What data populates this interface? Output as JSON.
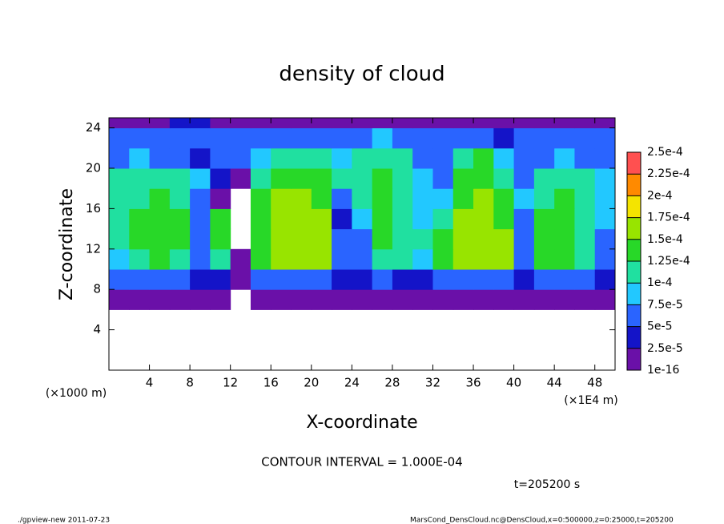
{
  "chart_data": {
    "type": "heatmap",
    "title": "density of cloud",
    "x_label": "X-coordinate",
    "y_label": "Z-coordinate",
    "x_unit": "(×1E4 m)",
    "y_unit": "(×1000 m)",
    "annotation": "CONTOUR INTERVAL = 1.000E-04",
    "time_label": "t=205200 s",
    "footer_left": "./gpview-new  2011-07-23",
    "footer_right": "MarsCond_DensCloud.nc@DensCloud,x=0:500000,z=0:25000,t=205200",
    "xlim": [
      0,
      50
    ],
    "ylim": [
      0,
      25
    ],
    "xticks": [
      4,
      8,
      12,
      16,
      20,
      24,
      28,
      32,
      36,
      40,
      44,
      48
    ],
    "yticks": [
      4,
      8,
      12,
      16,
      20,
      24
    ],
    "x_bins": [
      0,
      2,
      4,
      6,
      8,
      10,
      12,
      14,
      16,
      18,
      20,
      22,
      24,
      26,
      28,
      30,
      32,
      34,
      36,
      38,
      40,
      42,
      44,
      46,
      48,
      50
    ],
    "y_bins": [
      6,
      8,
      10,
      12,
      14,
      16,
      18,
      20,
      22,
      24,
      25
    ],
    "values": [
      [
        1e-05,
        1e-05,
        1e-05,
        1e-05,
        1e-05,
        1e-05,
        null,
        1e-05,
        1e-05,
        1e-05,
        2e-05,
        1e-05,
        1e-05,
        1e-05,
        1e-05,
        1e-05,
        1e-05,
        1e-05,
        2e-05,
        2e-05,
        1e-05,
        1e-05,
        1e-05,
        1e-05,
        1e-05
      ],
      [
        5e-05,
        6e-05,
        5e-05,
        5e-05,
        4e-05,
        3e-05,
        1e-05,
        5e-05,
        6e-05,
        6e-05,
        6e-05,
        3e-05,
        4e-05,
        5e-05,
        4e-05,
        4e-05,
        6e-05,
        6e-05,
        6e-05,
        5e-05,
        4e-05,
        5e-05,
        6e-05,
        5e-05,
        3e-05
      ],
      [
        9e-05,
        0.00012,
        0.00013,
        0.00012,
        5e-05,
        0.00012,
        1e-05,
        0.00013,
        0.00015,
        0.00016,
        0.00015,
        6e-05,
        6e-05,
        0.00012,
        0.0001,
        8e-05,
        0.00014,
        0.00015,
        0.00016,
        0.00015,
        5e-05,
        0.00013,
        0.00013,
        0.0001,
        6e-05
      ],
      [
        0.00011,
        0.00014,
        0.00014,
        0.00013,
        6e-05,
        0.00013,
        null,
        0.00014,
        0.00016,
        0.00017,
        0.00015,
        5e-05,
        7e-05,
        0.00013,
        0.00011,
        0.0001,
        0.00013,
        0.00016,
        0.00017,
        0.00015,
        6e-05,
        0.00014,
        0.00014,
        0.00012,
        7e-05
      ],
      [
        0.0001,
        0.00013,
        0.00014,
        0.00013,
        7e-05,
        0.00014,
        null,
        0.00014,
        0.00016,
        0.00016,
        0.00015,
        4e-05,
        9e-05,
        0.00013,
        0.00012,
        9e-05,
        0.0001,
        0.00015,
        0.00016,
        0.00014,
        7e-05,
        0.00013,
        0.00014,
        0.00012,
        8e-05
      ],
      [
        0.00012,
        0.00011,
        0.00013,
        0.00012,
        7e-05,
        2e-05,
        null,
        0.00013,
        0.00015,
        0.00015,
        0.00014,
        5e-05,
        0.00012,
        0.00013,
        0.00012,
        9e-05,
        8e-05,
        0.00014,
        0.00015,
        0.00013,
        8e-05,
        0.00012,
        0.00013,
        0.00012,
        9e-05
      ],
      [
        0.0001,
        0.0001,
        0.00012,
        0.00011,
        8e-05,
        3e-05,
        1e-05,
        0.00012,
        0.00014,
        0.00014,
        0.00013,
        0.00012,
        0.00012,
        0.00013,
        0.00012,
        8e-05,
        7e-05,
        0.00013,
        0.00014,
        0.00012,
        7e-05,
        0.00011,
        0.00012,
        0.00011,
        8e-05
      ],
      [
        7e-05,
        8e-05,
        7e-05,
        6e-05,
        3e-05,
        7e-05,
        7e-05,
        9e-05,
        0.00012,
        0.00012,
        0.0001,
        9e-05,
        0.0001,
        0.00012,
        0.00011,
        7e-05,
        6e-05,
        0.00012,
        0.00013,
        9e-05,
        6e-05,
        7e-05,
        8e-05,
        7e-05,
        6e-05
      ],
      [
        5e-05,
        6e-05,
        6e-05,
        6e-05,
        7e-05,
        6e-05,
        6e-05,
        5e-05,
        6e-05,
        7e-05,
        6e-05,
        5e-05,
        6e-05,
        8e-05,
        7e-05,
        5e-05,
        5e-05,
        7e-05,
        6e-05,
        4e-05,
        5e-05,
        5e-05,
        6e-05,
        6e-05,
        5e-05
      ],
      [
        2e-05,
        2e-05,
        2e-05,
        3e-05,
        3e-05,
        2e-05,
        2e-05,
        2e-05,
        2e-05,
        2e-05,
        2e-05,
        2e-05,
        2e-05,
        2e-05,
        2e-05,
        2e-05,
        2e-05,
        2e-05,
        2e-05,
        2e-05,
        2e-05,
        2e-05,
        2e-05,
        2e-05,
        2e-05
      ]
    ],
    "levels": [
      {
        "value": 1e-16,
        "label": "1e-16"
      },
      {
        "value": 2.5e-05,
        "label": "2.5e-5"
      },
      {
        "value": 5e-05,
        "label": "5e-5"
      },
      {
        "value": 7.5e-05,
        "label": "7.5e-5"
      },
      {
        "value": 0.0001,
        "label": "1e-4"
      },
      {
        "value": 0.000125,
        "label": "1.25e-4"
      },
      {
        "value": 0.00015,
        "label": "1.5e-4"
      },
      {
        "value": 0.000175,
        "label": "1.75e-4"
      },
      {
        "value": 0.0002,
        "label": "2e-4"
      },
      {
        "value": 0.000225,
        "label": "2.25e-4"
      },
      {
        "value": 0.00025,
        "label": "2.5e-4"
      }
    ],
    "colors": [
      "#6a10a8",
      "#1414c8",
      "#2a64ff",
      "#22c8ff",
      "#20e0a0",
      "#28d828",
      "#98e400",
      "#f4e400",
      "#ff8a00",
      "#ff5050"
    ]
  }
}
